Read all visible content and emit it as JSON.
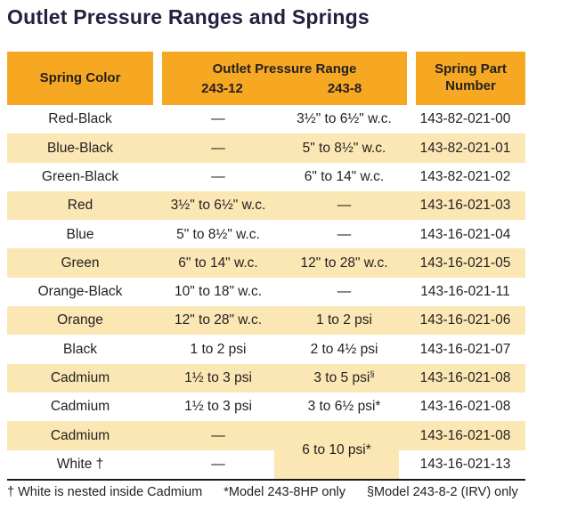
{
  "page": {
    "title": "Outlet Pressure Ranges and Springs"
  },
  "table": {
    "header": {
      "col_spring_color": "Spring Color",
      "group_label": "Outlet Pressure Range",
      "sub_col_1": "243-12",
      "sub_col_2": "243-8",
      "col_part_number": "Spring Part Number"
    },
    "rows": [
      {
        "spring_color": "Red-Black",
        "range_243_12": "—",
        "range_243_8": "3½\" to 6½\" w.c.",
        "part_number": "143-82-021-00",
        "shaded": false
      },
      {
        "spring_color": "Blue-Black",
        "range_243_12": "—",
        "range_243_8": "5\" to 8½\" w.c.",
        "part_number": "143-82-021-01",
        "shaded": true
      },
      {
        "spring_color": "Green-Black",
        "range_243_12": "—",
        "range_243_8": "6\" to 14\" w.c.",
        "part_number": "143-82-021-02",
        "shaded": false
      },
      {
        "spring_color": "Red",
        "range_243_12": "3½\" to 6½\" w.c.",
        "range_243_8": "—",
        "part_number": "143-16-021-03",
        "shaded": true
      },
      {
        "spring_color": "Blue",
        "range_243_12": "5\" to 8½\" w.c.",
        "range_243_8": "—",
        "part_number": "143-16-021-04",
        "shaded": false
      },
      {
        "spring_color": "Green",
        "range_243_12": "6\" to 14\" w.c.",
        "range_243_8": "12\" to 28\" w.c.",
        "part_number": "143-16-021-05",
        "shaded": true
      },
      {
        "spring_color": "Orange-Black",
        "range_243_12": "10\" to 18\" w.c.",
        "range_243_8": "—",
        "part_number": "143-16-021-11",
        "shaded": false
      },
      {
        "spring_color": "Orange",
        "range_243_12": "12\" to 28\" w.c.",
        "range_243_8": "1 to 2 psi",
        "part_number": "143-16-021-06",
        "shaded": true
      },
      {
        "spring_color": "Black",
        "range_243_12": "1 to 2 psi",
        "range_243_8": "2 to 4½ psi",
        "part_number": "143-16-021-07",
        "shaded": false
      },
      {
        "spring_color": "Cadmium",
        "range_243_12": "1½ to 3 psi",
        "range_243_8": "3 to 5 psi§",
        "part_number": "143-16-021-08",
        "shaded": true
      },
      {
        "spring_color": "Cadmium",
        "range_243_12": "1½ to 3 psi",
        "range_243_8": "3 to 6½ psi*",
        "part_number": "143-16-021-08",
        "shaded": false
      },
      {
        "spring_color": "Cadmium",
        "range_243_12": "—",
        "range_243_8": "",
        "part_number": "143-16-021-08",
        "shaded": true
      },
      {
        "spring_color": "White †",
        "range_243_12": "—",
        "range_243_8": "",
        "part_number": "143-16-021-13",
        "shaded": false
      }
    ],
    "merged_cell": {
      "text": "6 to 10 psi*"
    }
  },
  "footnotes": [
    "† White is nested inside Cadmium",
    "*Model 243-8HP only",
    "§Model 243-8-2 (IRV) only"
  ],
  "colors": {
    "header_bg": "#F7A823",
    "row_alt_bg": "#FBE7B4",
    "text": "#231F20",
    "title_text": "#232140"
  }
}
